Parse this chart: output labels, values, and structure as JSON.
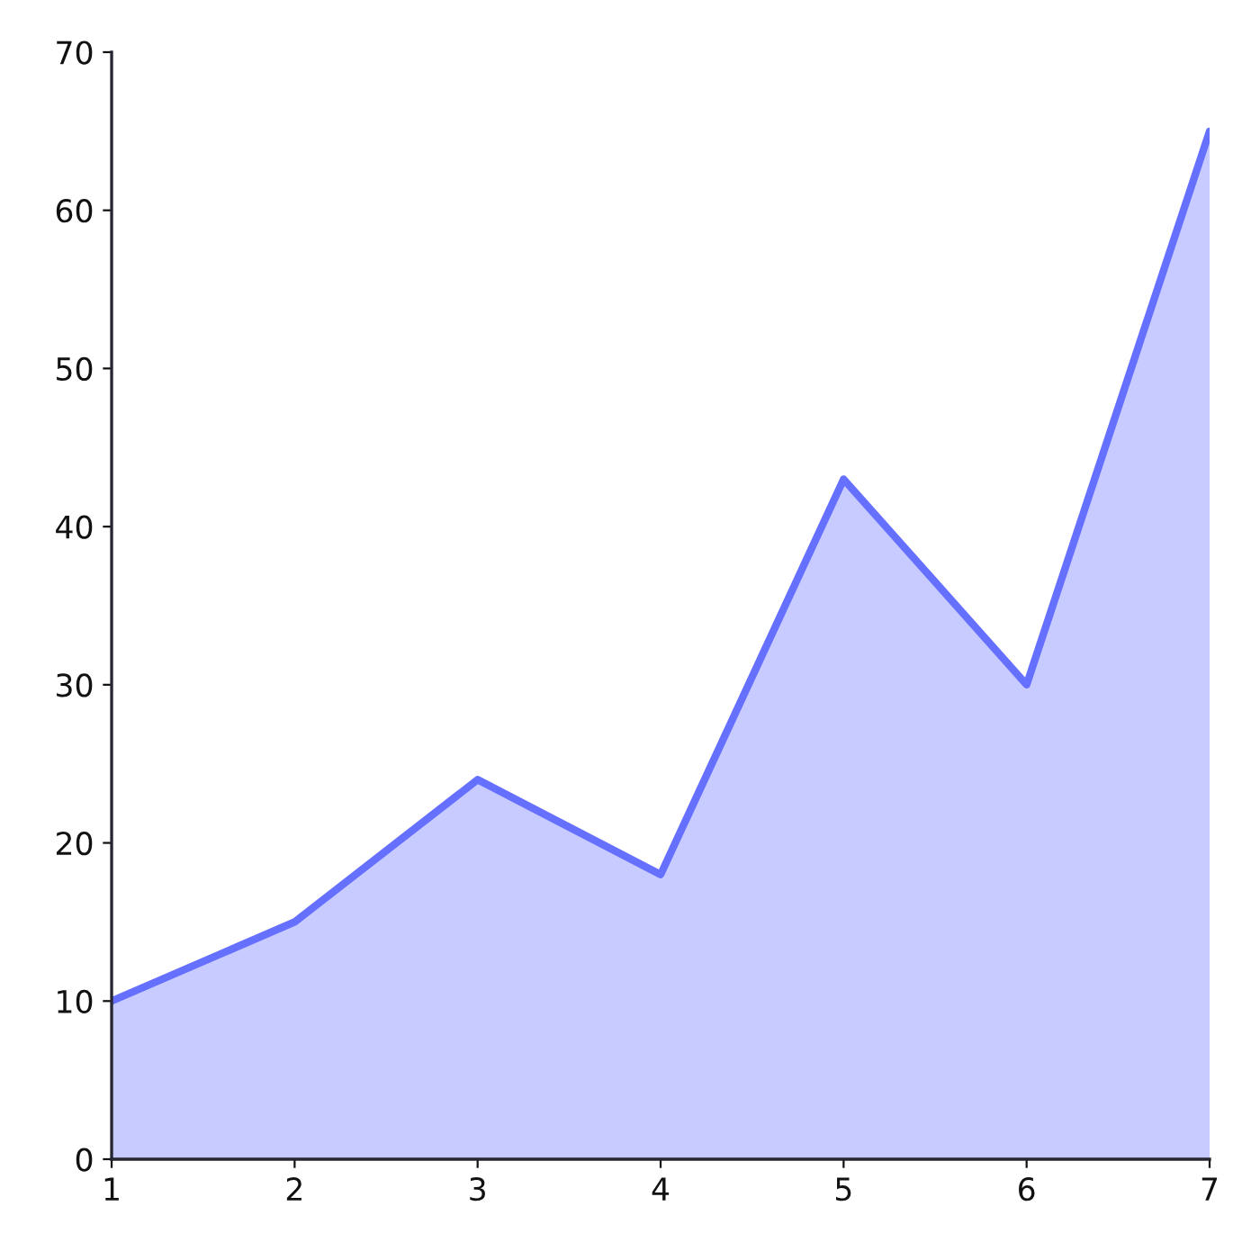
{
  "chart_data": {
    "type": "area",
    "x": [
      1,
      2,
      3,
      4,
      5,
      6,
      7
    ],
    "series": [
      {
        "color": "#6670ff",
        "values": [
          10,
          15,
          24,
          18,
          43,
          30,
          65
        ]
      }
    ],
    "xlim": [
      1,
      7
    ],
    "xticks": [
      1,
      2,
      3,
      4,
      5,
      6,
      7
    ],
    "ylim": [
      0,
      70
    ],
    "yticks": [
      0,
      10,
      20,
      30,
      40,
      50,
      60,
      70
    ]
  }
}
